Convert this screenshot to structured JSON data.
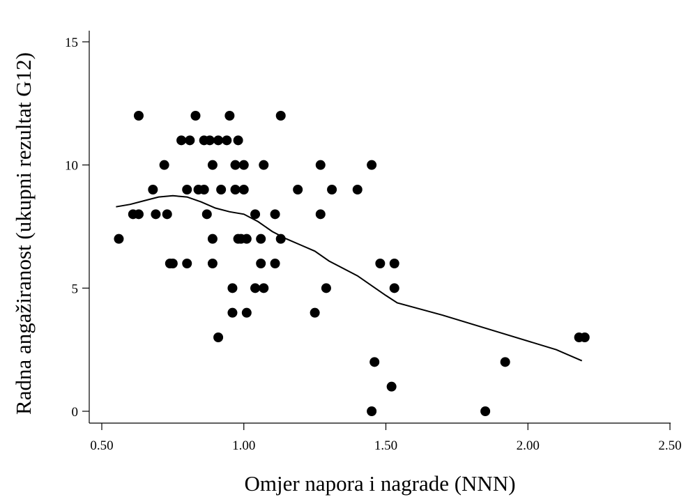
{
  "chart_data": {
    "type": "scatter",
    "title": "",
    "xlabel": "Omjer napora i nagrade (NNN)",
    "ylabel": "Radna angažiranost (ukupni rezultat G12)",
    "xlim": [
      0.45,
      2.55
    ],
    "ylim": [
      -0.5,
      15.5
    ],
    "xticks": [
      0.5,
      1.0,
      1.5,
      2.0,
      2.5
    ],
    "xtick_labels": [
      "0.50",
      "1.00",
      "1.50",
      "2.00",
      "2.50"
    ],
    "yticks": [
      0,
      5,
      10,
      15
    ],
    "ytick_labels": [
      "0",
      "5",
      "10",
      "15"
    ],
    "grid": false,
    "legend": "none",
    "colors": {
      "points": "#000000",
      "line": "#000000",
      "background": "#ffffff"
    },
    "points": [
      [
        0.56,
        7
      ],
      [
        0.61,
        8
      ],
      [
        0.63,
        8
      ],
      [
        0.63,
        12
      ],
      [
        0.68,
        9
      ],
      [
        0.69,
        8
      ],
      [
        0.72,
        10
      ],
      [
        0.73,
        8
      ],
      [
        0.74,
        6
      ],
      [
        0.75,
        6
      ],
      [
        0.78,
        11
      ],
      [
        0.8,
        6
      ],
      [
        0.8,
        9
      ],
      [
        0.81,
        11
      ],
      [
        0.83,
        12
      ],
      [
        0.84,
        9
      ],
      [
        0.86,
        11
      ],
      [
        0.86,
        9
      ],
      [
        0.87,
        8
      ],
      [
        0.88,
        11
      ],
      [
        0.89,
        10
      ],
      [
        0.89,
        7
      ],
      [
        0.89,
        6
      ],
      [
        0.91,
        11
      ],
      [
        0.91,
        3
      ],
      [
        0.92,
        9
      ],
      [
        0.94,
        11
      ],
      [
        0.95,
        12
      ],
      [
        0.96,
        5
      ],
      [
        0.96,
        4
      ],
      [
        0.97,
        10
      ],
      [
        0.97,
        9
      ],
      [
        0.98,
        11
      ],
      [
        0.98,
        7
      ],
      [
        0.99,
        7
      ],
      [
        1.0,
        10
      ],
      [
        1.0,
        9
      ],
      [
        1.01,
        7
      ],
      [
        1.01,
        4
      ],
      [
        1.04,
        8
      ],
      [
        1.04,
        5
      ],
      [
        1.06,
        7
      ],
      [
        1.06,
        6
      ],
      [
        1.07,
        10
      ],
      [
        1.07,
        5
      ],
      [
        1.11,
        8
      ],
      [
        1.11,
        6
      ],
      [
        1.13,
        12
      ],
      [
        1.13,
        7
      ],
      [
        1.19,
        9
      ],
      [
        1.25,
        4
      ],
      [
        1.27,
        10
      ],
      [
        1.27,
        8
      ],
      [
        1.29,
        5
      ],
      [
        1.31,
        9
      ],
      [
        1.4,
        9
      ],
      [
        1.45,
        10
      ],
      [
        1.45,
        0
      ],
      [
        1.46,
        2
      ],
      [
        1.48,
        6
      ],
      [
        1.52,
        1
      ],
      [
        1.53,
        6
      ],
      [
        1.53,
        5
      ],
      [
        1.85,
        0
      ],
      [
        1.92,
        2
      ],
      [
        2.18,
        3
      ],
      [
        2.2,
        3
      ]
    ],
    "fit_line": {
      "type": "lowess",
      "x": [
        0.55,
        0.6,
        0.65,
        0.7,
        0.75,
        0.8,
        0.85,
        0.9,
        0.95,
        1.0,
        1.05,
        1.1,
        1.15,
        1.2,
        1.25,
        1.3,
        1.4,
        1.45,
        1.5,
        1.54,
        1.7,
        1.9,
        2.1,
        2.19
      ],
      "y": [
        8.3,
        8.4,
        8.55,
        8.7,
        8.75,
        8.7,
        8.5,
        8.25,
        8.1,
        8.0,
        7.7,
        7.3,
        7.0,
        6.75,
        6.5,
        6.1,
        5.5,
        5.1,
        4.7,
        4.4,
        3.9,
        3.2,
        2.5,
        2.05
      ]
    }
  }
}
